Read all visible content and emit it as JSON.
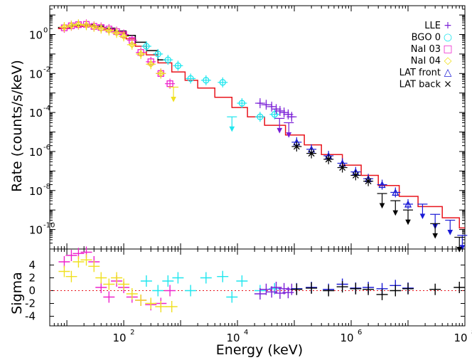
{
  "chart_data": {
    "type": "scatter",
    "xlabel": "Energy (keV)",
    "x_scale": "log",
    "xlim": [
      5,
      100000000
    ],
    "x_tick_labels": [
      {
        "base": "10",
        "exp": "2",
        "value": 100
      },
      {
        "base": "10",
        "exp": "4",
        "value": 10000
      },
      {
        "base": "10",
        "exp": "6",
        "value": 1000000
      },
      {
        "base": "10",
        "exp": "8",
        "value": 100000000
      }
    ],
    "top_panel": {
      "ylabel": "Rate (counts/s/keV)",
      "y_scale": "log",
      "ylim": [
        1e-11,
        30
      ],
      "y_tick_labels": [
        {
          "base": "10",
          "exp": "0",
          "value": 1
        },
        {
          "base": "10",
          "exp": "-2",
          "value": 0.01
        },
        {
          "base": "10",
          "exp": "-4",
          "value": 0.0001
        },
        {
          "base": "10",
          "exp": "-6",
          "value": 1e-06
        },
        {
          "base": "10",
          "exp": "-8",
          "value": 1e-08
        },
        {
          "base": "10",
          "exp": "-10",
          "value": 1e-10
        }
      ],
      "legend": [
        {
          "label": "LLE",
          "symbol": "+",
          "color": "#7a1fd6"
        },
        {
          "label": "BGO 0",
          "symbol": "○",
          "color": "#1ee6ee"
        },
        {
          "label": "NaI 03",
          "symbol": "□",
          "color": "#ee22cc"
        },
        {
          "label": "NaI 04",
          "symbol": "◇",
          "color": "#f0e020"
        },
        {
          "label": "LAT front",
          "symbol": "△",
          "color": "#1a1ad6"
        },
        {
          "label": "LAT back",
          "symbol": "×",
          "color": "#000000"
        }
      ],
      "series": [
        {
          "name": "NaI 03",
          "color": "#ee22cc",
          "marker": "square",
          "x": [
            9,
            12,
            16,
            22,
            30,
            40,
            55,
            75,
            100,
            140,
            200,
            300,
            450,
            650
          ],
          "y": [
            2.2,
            2.8,
            3.2,
            3.3,
            2.6,
            2.3,
            1.9,
            1.4,
            1.0,
            0.5,
            0.12,
            0.04,
            0.01,
            0.003
          ]
        },
        {
          "name": "NaI 04",
          "color": "#f0e020",
          "marker": "diamond",
          "x": [
            9,
            12,
            16,
            22,
            30,
            40,
            55,
            75,
            100,
            140,
            200,
            300,
            450
          ],
          "y": [
            2.4,
            2.9,
            3.3,
            3.0,
            2.5,
            2.0,
            1.6,
            1.2,
            0.8,
            0.3,
            0.1,
            0.03,
            0.01
          ],
          "upper_limits": [
            {
              "x": 750,
              "y": 0.002
            }
          ]
        },
        {
          "name": "BGO 0",
          "color": "#1ee6ee",
          "marker": "circle",
          "x": [
            250,
            400,
            600,
            900,
            1500,
            2800,
            5500,
            12000,
            25000,
            45000
          ],
          "y": [
            0.25,
            0.1,
            0.05,
            0.025,
            0.0055,
            0.0045,
            0.0035,
            0.0003,
            6e-05,
            8e-05
          ],
          "upper_limits": [
            {
              "x": 8000,
              "y": 6e-05
            }
          ]
        },
        {
          "name": "LLE",
          "color": "#7a1fd6",
          "marker": "plus",
          "x": [
            25000,
            32000,
            40000,
            48000,
            56000,
            66000,
            78000,
            90000
          ],
          "y": [
            0.0003,
            0.00025,
            0.0002,
            0.00015,
            0.00012,
            0.0001,
            8e-05,
            6e-05
          ],
          "upper_limits": [
            {
              "x": 55000,
              "y": 5e-05
            },
            {
              "x": 80000,
              "y": 3e-05
            }
          ]
        },
        {
          "name": "LAT front",
          "color": "#1a1ad6",
          "marker": "triangle",
          "x": [
            110000,
            200000,
            400000,
            700000,
            1200000,
            2000000,
            3500000,
            6000000,
            10000000
          ],
          "y": [
            3e-06,
            1.3e-06,
            6e-07,
            2.5e-07,
            9e-08,
            4e-08,
            2e-08,
            8e-09,
            2e-09
          ],
          "upper_limits": [
            {
              "x": 18000000,
              "y": 2e-09
            },
            {
              "x": 30000000,
              "y": 6e-10
            },
            {
              "x": 55000000,
              "y": 3e-10
            },
            {
              "x": 90000000,
              "y": 5e-11
            }
          ]
        },
        {
          "name": "LAT back",
          "color": "#000000",
          "marker": "x",
          "x": [
            110000,
            200000,
            400000,
            700000,
            1200000,
            2000000
          ],
          "y": [
            1.8e-06,
            8e-07,
            4e-07,
            1.5e-07,
            6e-08,
            3e-08
          ],
          "upper_limits": [
            {
              "x": 3500000,
              "y": 7e-09
            },
            {
              "x": 6000000,
              "y": 3e-09
            },
            {
              "x": 10000000,
              "y": 1e-09
            },
            {
              "x": 30000000,
              "y": 2e-10
            },
            {
              "x": 80000000,
              "y": 4e-11
            }
          ]
        }
      ],
      "models": [
        {
          "name": "model-red",
          "color": "#e8141c",
          "x": [
            7,
            12,
            20,
            30,
            45,
            70,
            110,
            160,
            250,
            400,
            700,
            1200,
            2000,
            4000,
            8000,
            15000,
            30000,
            70000,
            150000,
            300000,
            700000,
            1500000,
            3000000,
            7000000,
            15000000,
            40000000,
            80000000
          ],
          "y": [
            2.0,
            2.6,
            2.8,
            2.4,
            1.8,
            1.2,
            0.6,
            0.25,
            0.09,
            0.035,
            0.012,
            0.0045,
            0.0018,
            0.0006,
            0.00018,
            6e-05,
            2.2e-05,
            7e-06,
            2.2e-06,
            7e-07,
            2e-07,
            6e-08,
            1.8e-08,
            5e-09,
            1.5e-09,
            4e-10,
            1.2e-10
          ]
        },
        {
          "name": "model-black",
          "color": "#000000",
          "x": [
            7,
            12,
            20,
            30,
            45,
            70,
            110,
            160,
            250,
            400
          ],
          "y": [
            2.3,
            3.0,
            3.2,
            2.7,
            2.1,
            1.5,
            0.9,
            0.4,
            0.15,
            0.05
          ]
        }
      ]
    },
    "bottom_panel": {
      "ylabel": "Sigma",
      "ylim": [
        -5.5,
        6.5
      ],
      "y_tick_labels": [
        {
          "label": "4",
          "value": 4
        },
        {
          "label": "2",
          "value": 2
        },
        {
          "label": "0",
          "value": 0
        },
        {
          "label": "-2",
          "value": -2
        },
        {
          "label": "-4",
          "value": -4
        }
      ],
      "reference_line": 0,
      "series": [
        {
          "name": "NaI 03",
          "color": "#ee22cc",
          "x": [
            9,
            12,
            16,
            22,
            30,
            40,
            55,
            75,
            100,
            140,
            200,
            300,
            450,
            650
          ],
          "y": [
            4.5,
            5.5,
            5.8,
            6.0,
            4.5,
            0.5,
            -1.0,
            1.5,
            0.5,
            -1.0,
            -1.5,
            -2.2,
            -2.0,
            0.0
          ]
        },
        {
          "name": "NaI 04",
          "color": "#f0e020",
          "x": [
            9,
            12,
            16,
            22,
            30,
            40,
            55,
            75,
            100,
            140,
            200,
            300,
            450,
            700
          ],
          "y": [
            3.0,
            2.2,
            4.5,
            4.8,
            3.8,
            2.0,
            1.0,
            2.0,
            1.0,
            -0.5,
            -1.5,
            -2.0,
            -2.5,
            -2.5
          ]
        },
        {
          "name": "BGO 0",
          "color": "#1ee6ee",
          "x": [
            250,
            400,
            600,
            900,
            1500,
            2800,
            5500,
            8000,
            12000,
            25000,
            45000
          ],
          "y": [
            1.5,
            0.0,
            1.5,
            2.0,
            0.0,
            2.0,
            2.2,
            -1.0,
            1.5,
            0.0,
            0.3
          ]
        },
        {
          "name": "LLE",
          "color": "#7a1fd6",
          "x": [
            25000,
            32000,
            40000,
            48000,
            56000,
            66000,
            78000,
            90000
          ],
          "y": [
            -0.5,
            0.2,
            -0.2,
            0.5,
            -0.4,
            0.3,
            -0.3,
            0.2
          ]
        },
        {
          "name": "LAT front",
          "color": "#1a1ad6",
          "x": [
            110000,
            200000,
            400000,
            700000,
            1200000,
            2000000,
            3500000,
            6000000,
            10000000
          ],
          "y": [
            0.3,
            0.5,
            0.2,
            1.0,
            0.4,
            0.5,
            0.3,
            0.8,
            0.4
          ]
        },
        {
          "name": "LAT back",
          "color": "#000000",
          "x": [
            110000,
            200000,
            400000,
            700000,
            1200000,
            2000000,
            3500000,
            6000000,
            10000000,
            30000000,
            80000000
          ],
          "y": [
            0.2,
            0.4,
            0.0,
            0.6,
            0.3,
            0.2,
            -0.6,
            0.0,
            0.3,
            0.2,
            0.5
          ]
        }
      ]
    }
  }
}
